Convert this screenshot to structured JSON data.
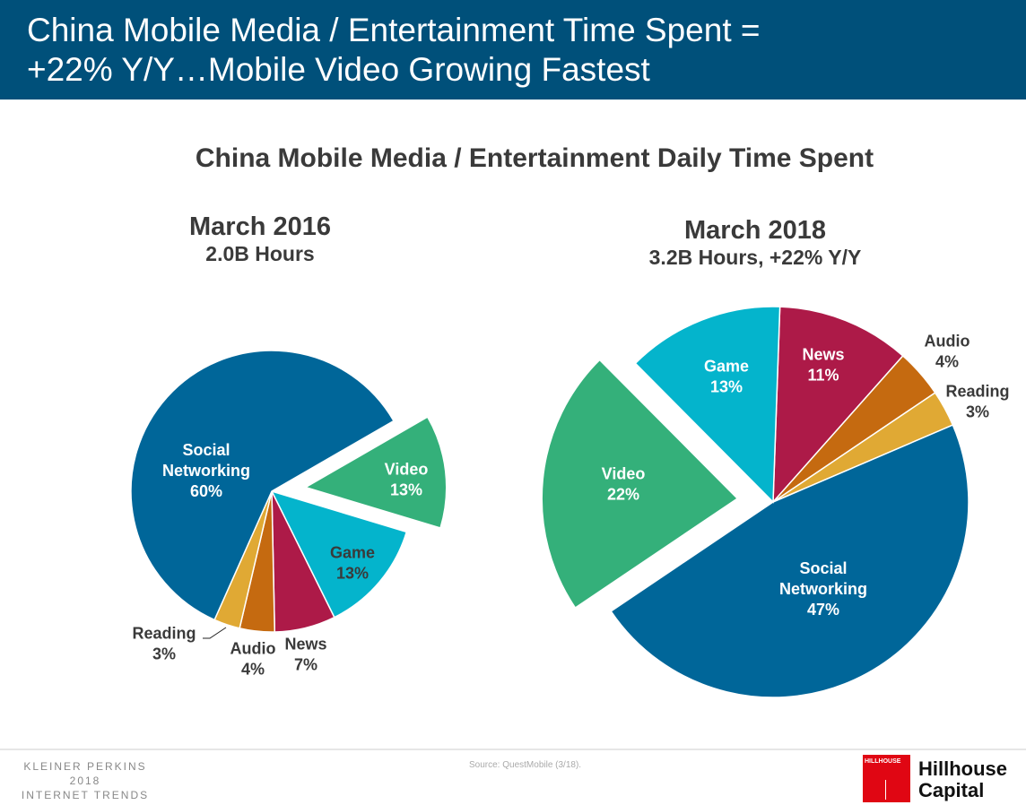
{
  "slide": {
    "title_line1": "China Mobile Media / Entertainment Time Spent =",
    "title_line2": "+22% Y/Y…Mobile Video Growing Fastest"
  },
  "footer": {
    "kp_line1": "KLEINER PERKINS",
    "kp_line2": "2018",
    "kp_line3": "INTERNET TRENDS",
    "source": "Source: QuestMobile (3/18).",
    "hillhouse_box": "HILLHOUSE",
    "hillhouse_line1": "Hillhouse",
    "hillhouse_line2": "Capital"
  },
  "chart_data": [
    {
      "type": "pie",
      "title": "China Mobile Media / Entertainment Daily Time Spent",
      "subtitle": "March 2016",
      "subtitle2": "2.0B Hours",
      "slices": [
        {
          "label": "Video",
          "value": 13,
          "pct": "13%",
          "color": "#34b07a",
          "exploded": true,
          "text_color": "#ffffff"
        },
        {
          "label": "Game",
          "value": 13,
          "pct": "13%",
          "color": "#04b4cc",
          "text_color": "#3a3a3a"
        },
        {
          "label": "News",
          "value": 7,
          "pct": "7%",
          "color": "#ad1a48",
          "text_color": "#3a3a3a"
        },
        {
          "label": "Audio",
          "value": 4,
          "pct": "4%",
          "color": "#c56a10",
          "text_color": "#3a3a3a"
        },
        {
          "label": "Reading",
          "value": 3,
          "pct": "3%",
          "color": "#e0a934",
          "text_color": "#3a3a3a"
        },
        {
          "label": "Social Networking",
          "value": 60,
          "pct": "60%",
          "color": "#006699",
          "text_color": "#ffffff"
        }
      ]
    },
    {
      "type": "pie",
      "subtitle": "March 2018",
      "subtitle2": "3.2B Hours, +22% Y/Y",
      "slices": [
        {
          "label": "News",
          "value": 11,
          "pct": "11%",
          "color": "#ad1a48",
          "text_color": "#ffffff"
        },
        {
          "label": "Audio",
          "value": 4,
          "pct": "4%",
          "color": "#c56a10",
          "text_color": "#3a3a3a"
        },
        {
          "label": "Reading",
          "value": 3,
          "pct": "3%",
          "color": "#e0a934",
          "text_color": "#3a3a3a"
        },
        {
          "label": "Social Networking",
          "value": 47,
          "pct": "47%",
          "color": "#006699",
          "text_color": "#ffffff"
        },
        {
          "label": "Video",
          "value": 22,
          "pct": "22%",
          "color": "#34b07a",
          "exploded": true,
          "text_color": "#ffffff"
        },
        {
          "label": "Game",
          "value": 13,
          "pct": "13%",
          "color": "#04b4cc",
          "text_color": "#ffffff"
        }
      ]
    }
  ]
}
